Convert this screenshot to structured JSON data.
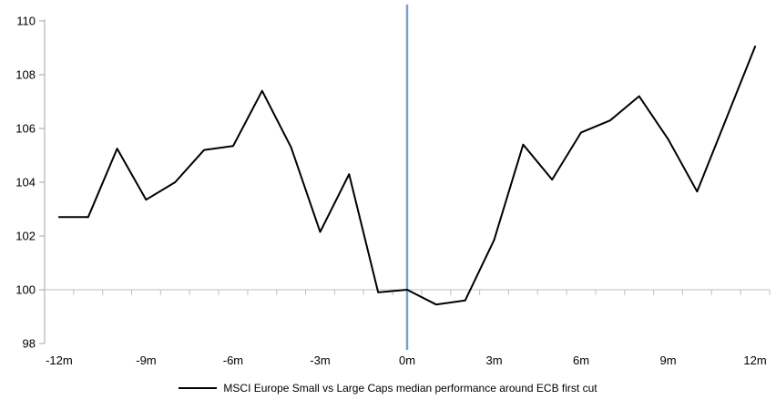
{
  "chart_data": {
    "type": "line",
    "title": "",
    "xlabel": "",
    "ylabel": "",
    "x_months": [
      -12,
      -11,
      -10,
      -9,
      -8,
      -7,
      -6,
      -5,
      -4,
      -3,
      -2,
      -1,
      0,
      1,
      2,
      3,
      4,
      5,
      6,
      7,
      8,
      9,
      10,
      11,
      12
    ],
    "series": [
      {
        "name": "MSCI Europe Small vs Large Caps median performance around ECB first cut",
        "color": "#000000",
        "values": [
          102.7,
          102.7,
          105.25,
          103.35,
          104.0,
          105.2,
          105.35,
          107.4,
          105.3,
          102.15,
          104.3,
          99.9,
          100.0,
          99.45,
          99.6,
          101.85,
          105.4,
          104.1,
          105.85,
          106.3,
          107.2,
          105.6,
          103.65,
          106.35,
          109.05
        ]
      }
    ],
    "ylim": [
      98,
      110
    ],
    "y_ticks": [
      98,
      100,
      102,
      104,
      106,
      108,
      110
    ],
    "x_tick_labels": [
      "-12m",
      "-9m",
      "-6m",
      "-3m",
      "0m",
      "3m",
      "6m",
      "9m",
      "12m"
    ],
    "x_tick_months": [
      -12,
      -9,
      -6,
      -3,
      0,
      3,
      6,
      9,
      12
    ],
    "baseline": {
      "value": 100,
      "color": "#BFBFBF"
    },
    "event_line": {
      "x_month": 0,
      "color": "#78A2CC"
    },
    "axis_color": "#A6A6A6",
    "grid": "off",
    "legend_position": "bottom"
  }
}
